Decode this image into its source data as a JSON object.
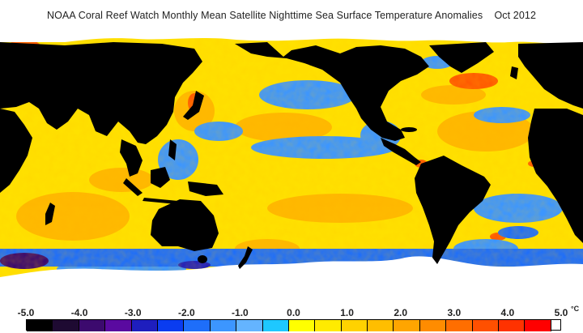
{
  "title": "NOAA Coral Reef Watch Monthly Mean Satellite Nighttime Sea Surface Temperature Anomalies    Oct 2012",
  "legend": {
    "ticks": [
      {
        "label": "-5.0",
        "value": -5.0
      },
      {
        "label": "-4.0",
        "value": -4.0
      },
      {
        "label": "-3.0",
        "value": -3.0
      },
      {
        "label": "-2.0",
        "value": -2.0
      },
      {
        "label": "-1.0",
        "value": -1.0
      },
      {
        "label": "0.0",
        "value": 0.0
      },
      {
        "label": "1.0",
        "value": 1.0
      },
      {
        "label": "2.0",
        "value": 2.0
      },
      {
        "label": "3.0",
        "value": 3.0
      },
      {
        "label": "4.0",
        "value": 4.0
      },
      {
        "label": "5.0",
        "value": 5.0
      }
    ],
    "unit": "°C",
    "min": -5.0,
    "max": 5.0,
    "colors": [
      "#000000",
      "#1e0a32",
      "#3c0a6e",
      "#5a0aa0",
      "#1e1ebe",
      "#0a3cf0",
      "#1e6efa",
      "#3c96ff",
      "#64b4ff",
      "#1ec8ff",
      "#ffff00",
      "#ffeb00",
      "#ffd200",
      "#ffbe00",
      "#ffa500",
      "#ff8c00",
      "#ff6e00",
      "#ff5000",
      "#ff3200",
      "#ff0000"
    ]
  },
  "palette": {
    "land": "#000000",
    "ice": "#ffffff",
    "ocean_base": "#ffe600",
    "warm": "#ffb400",
    "cool": "#3c96ff",
    "cold": "#1e6efa",
    "hot": "#ff5a00"
  }
}
